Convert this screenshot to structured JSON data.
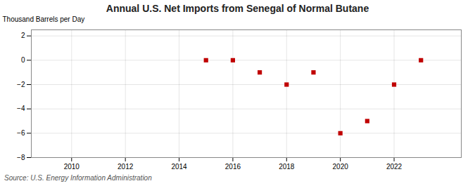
{
  "chart_data": {
    "type": "scatter",
    "title": "Annual U.S. Net Imports from Senegal of Normal Butane",
    "ylabel": "Thousand Barrels per Day",
    "source": "Source: U.S. Energy Information Administration",
    "x": [
      2015,
      2016,
      2017,
      2018,
      2019,
      2020,
      2021,
      2022,
      2023
    ],
    "values": [
      0,
      0,
      -1,
      -2,
      -1,
      -6,
      -5,
      -2,
      0
    ],
    "color": "#c00000",
    "marker": "square",
    "xlim": [
      2008.5,
      2024.5
    ],
    "ylim": [
      -8,
      2.5
    ],
    "xticks": [
      2010,
      2012,
      2014,
      2016,
      2018,
      2020,
      2022
    ],
    "yticks": [
      -8,
      -6,
      -4,
      -2,
      0,
      2
    ],
    "grid": true
  }
}
